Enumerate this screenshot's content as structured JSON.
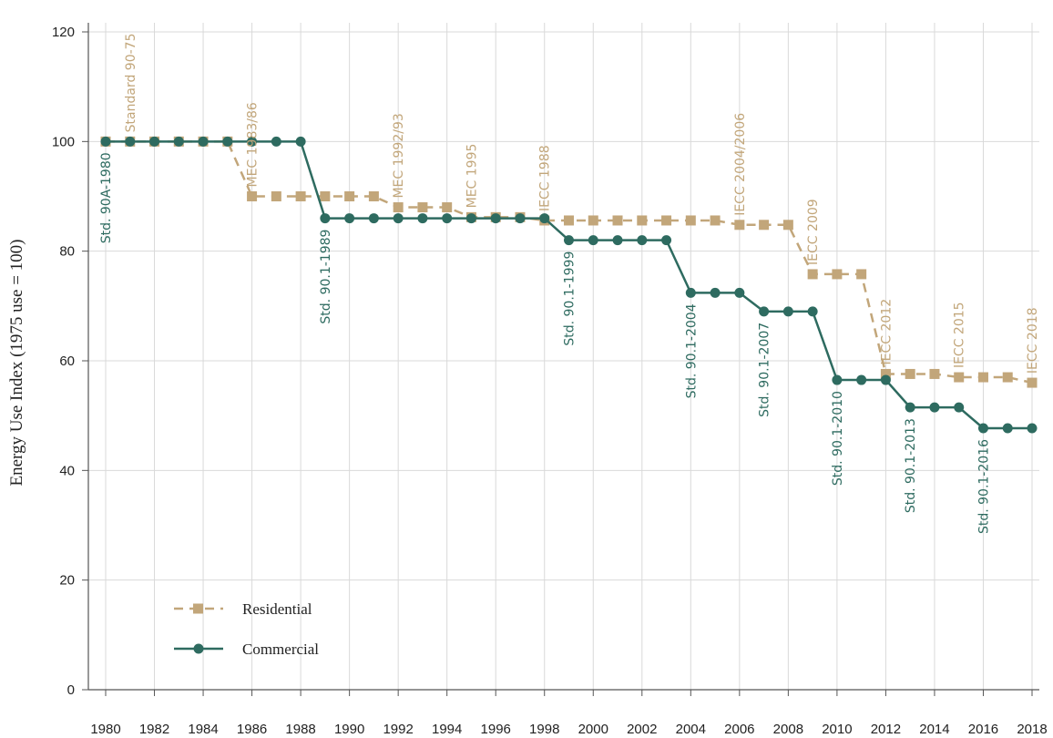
{
  "chart_data": {
    "type": "line",
    "title": "",
    "xlabel": "",
    "ylabel": "Energy Use Index (1975 use = 100)",
    "xlim": [
      1980,
      2018
    ],
    "ylim": [
      0,
      120
    ],
    "yticks": [
      0,
      20,
      40,
      60,
      80,
      100,
      120
    ],
    "x_tick_labels": [
      "1980",
      "1982",
      "1984",
      "1986",
      "1988",
      "1990",
      "1992",
      "1994",
      "1996",
      "1998",
      "2000",
      "2002",
      "2004",
      "2006",
      "2008",
      "2010",
      "2012",
      "2014",
      "2016",
      "2018"
    ],
    "grid": true,
    "legend_position": "bottom-left",
    "x": [
      1980,
      1981,
      1982,
      1983,
      1984,
      1985,
      1986,
      1987,
      1988,
      1989,
      1990,
      1991,
      1992,
      1993,
      1994,
      1995,
      1996,
      1997,
      1998,
      1999,
      2000,
      2001,
      2002,
      2003,
      2004,
      2005,
      2006,
      2007,
      2008,
      2009,
      2010,
      2011,
      2012,
      2013,
      2014,
      2015,
      2016,
      2017,
      2018
    ],
    "series": [
      {
        "name": "Residential",
        "color": "#c2a67a",
        "line_style": "dashed",
        "marker": "square",
        "values": [
          100,
          100,
          100,
          100,
          100,
          100,
          90,
          90,
          90,
          90,
          90,
          90,
          88,
          88,
          88,
          86.2,
          86.2,
          86.2,
          85.6,
          85.6,
          85.6,
          85.6,
          85.6,
          85.6,
          85.6,
          85.6,
          84.8,
          84.8,
          84.8,
          75.8,
          75.8,
          75.8,
          57.6,
          57.6,
          57.6,
          57,
          57,
          57,
          56
        ]
      },
      {
        "name": "Commercial",
        "color": "#2e6b60",
        "line_style": "solid",
        "marker": "circle",
        "values": [
          100,
          100,
          100,
          100,
          100,
          100,
          100,
          100,
          100,
          86,
          86,
          86,
          86,
          86,
          86,
          86,
          86,
          86,
          86,
          82,
          82,
          82,
          82,
          82,
          72.4,
          72.4,
          72.4,
          69,
          69,
          69,
          56.5,
          56.5,
          56.5,
          51.5,
          51.5,
          51.5,
          47.7,
          47.7,
          47.7
        ]
      }
    ],
    "annotations": [
      {
        "text": "Standard 90-75",
        "x": 1981,
        "series": "Residential"
      },
      {
        "text": "MEC 1983/86",
        "x": 1986,
        "series": "Residential"
      },
      {
        "text": "MEC 1992/93",
        "x": 1992,
        "series": "Residential"
      },
      {
        "text": "MEC 1995",
        "x": 1995,
        "series": "Residential"
      },
      {
        "text": "IECC 1988",
        "x": 1998,
        "series": "Residential"
      },
      {
        "text": "IECC 2004/2006",
        "x": 2006,
        "series": "Residential"
      },
      {
        "text": "IECC 2009",
        "x": 2009,
        "series": "Residential"
      },
      {
        "text": "IECC 2012",
        "x": 2012,
        "series": "Residential"
      },
      {
        "text": "IECC 2015",
        "x": 2015,
        "series": "Residential"
      },
      {
        "text": "IECC 2018",
        "x": 2018,
        "series": "Residential"
      },
      {
        "text": "Std. 90A-1980",
        "x": 1980,
        "series": "Commercial"
      },
      {
        "text": "Std. 90.1-1989",
        "x": 1989,
        "series": "Commercial"
      },
      {
        "text": "Std. 90.1-1999",
        "x": 1999,
        "series": "Commercial"
      },
      {
        "text": "Std. 90.1-2004",
        "x": 2004,
        "series": "Commercial"
      },
      {
        "text": "Std. 90.1-2007",
        "x": 2007,
        "series": "Commercial"
      },
      {
        "text": "Std. 90.1-2010",
        "x": 2010,
        "series": "Commercial"
      },
      {
        "text": "Std. 90.1-2013",
        "x": 2013,
        "series": "Commercial"
      },
      {
        "text": "Std. 90.1-2016",
        "x": 2016,
        "series": "Commercial"
      }
    ]
  }
}
